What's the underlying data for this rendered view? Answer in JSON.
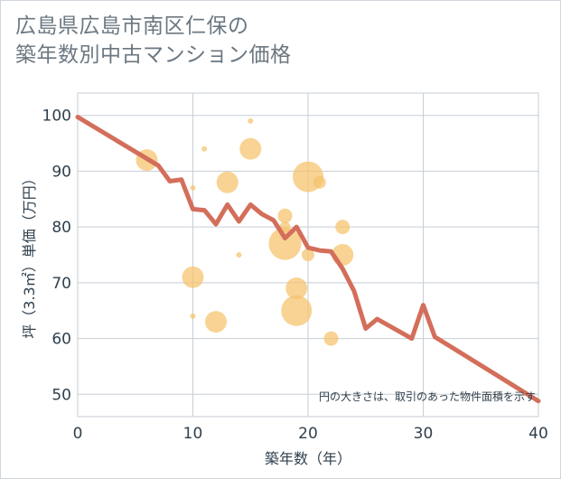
{
  "title_line1": "広島県広島市南区仁保の",
  "title_line2": "築年数別中古マンション価格",
  "chart_data": {
    "type": "scatter+line",
    "xlabel": "築年数（年）",
    "ylabel": "坪（3.3㎡）単価（万円）",
    "xlim": [
      0,
      40
    ],
    "ylim": [
      46,
      104
    ],
    "xticks": [
      0,
      10,
      20,
      30,
      40
    ],
    "yticks": [
      50,
      60,
      70,
      80,
      90,
      100
    ],
    "annotation": "円の大きさは、取引のあった物件面積を示す",
    "colors": {
      "bubble": "#f5c26b",
      "line": "#d36e5a",
      "grid": "#c6ced6"
    },
    "line": {
      "x": [
        0,
        7,
        8,
        9,
        10,
        11,
        12,
        13,
        14,
        15,
        16,
        17,
        18,
        19,
        20,
        21,
        22,
        23,
        24,
        25,
        26,
        29,
        30,
        31,
        40
      ],
      "y": [
        99.7,
        91.0,
        88.2,
        88.5,
        83.2,
        83.0,
        80.5,
        84.0,
        81.0,
        84.0,
        82.3,
        81.2,
        78.0,
        80.0,
        76.3,
        75.8,
        75.6,
        72.5,
        68.5,
        61.8,
        63.5,
        60.0,
        66.0,
        60.3,
        48.8
      ]
    },
    "bubbles": [
      {
        "x": 6,
        "y": 92,
        "r": 12
      },
      {
        "x": 10,
        "y": 87,
        "r": 3
      },
      {
        "x": 10,
        "y": 71,
        "r": 12
      },
      {
        "x": 10,
        "y": 64,
        "r": 3
      },
      {
        "x": 11,
        "y": 94,
        "r": 3
      },
      {
        "x": 12,
        "y": 63,
        "r": 12
      },
      {
        "x": 13,
        "y": 88,
        "r": 12
      },
      {
        "x": 14,
        "y": 75,
        "r": 3
      },
      {
        "x": 15,
        "y": 99,
        "r": 3
      },
      {
        "x": 15,
        "y": 94,
        "r": 12
      },
      {
        "x": 18,
        "y": 82,
        "r": 8
      },
      {
        "x": 18,
        "y": 80,
        "r": 6
      },
      {
        "x": 18,
        "y": 77,
        "r": 18
      },
      {
        "x": 19,
        "y": 69,
        "r": 12
      },
      {
        "x": 19,
        "y": 65,
        "r": 17
      },
      {
        "x": 20,
        "y": 89,
        "r": 17
      },
      {
        "x": 20,
        "y": 75,
        "r": 7
      },
      {
        "x": 21,
        "y": 88,
        "r": 7
      },
      {
        "x": 22,
        "y": 60,
        "r": 8
      },
      {
        "x": 23,
        "y": 80,
        "r": 8
      },
      {
        "x": 23,
        "y": 75,
        "r": 12
      }
    ]
  }
}
